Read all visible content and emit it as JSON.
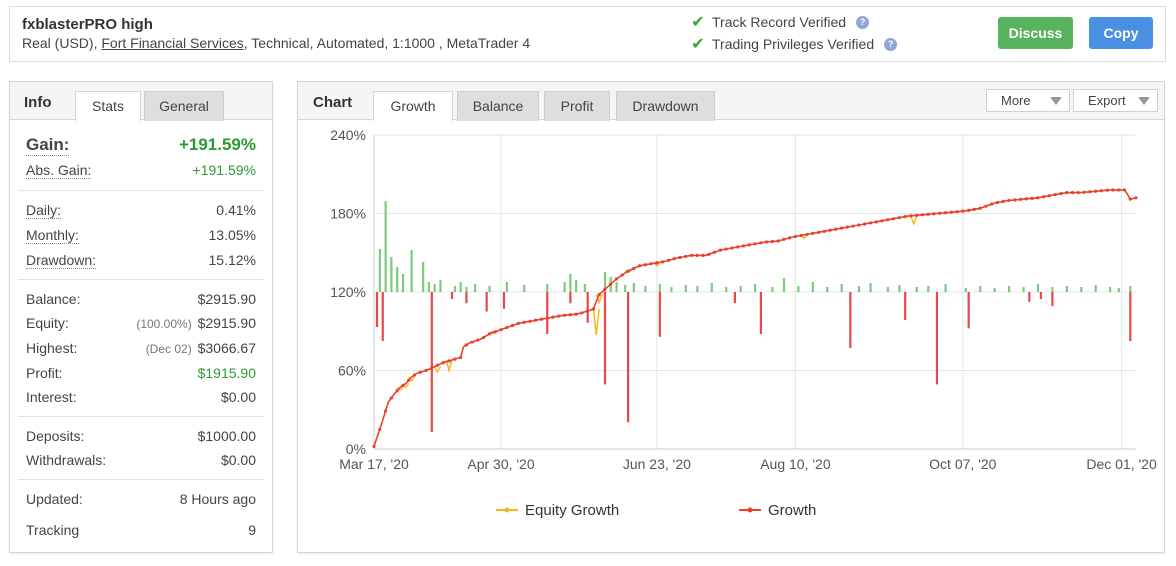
{
  "header": {
    "system_name": "fxblasterPRO high",
    "desc_prefix": "Real (USD), ",
    "broker": "Fort Financial Services",
    "desc_suffix": ", Technical, Automated, 1:1000 , MetaTrader 4",
    "verify_track": "Track Record Verified",
    "verify_trading": "Trading Privileges Verified",
    "discuss_label": "Discuss",
    "copy_label": "Copy"
  },
  "left": {
    "title": "Info",
    "tabs": [
      "Stats",
      "General"
    ],
    "gain_label": "Gain:",
    "gain_value": "+191.59%",
    "abs_gain_label": "Abs. Gain:",
    "abs_gain_value": "+191.59%",
    "daily_label": "Daily:",
    "daily_value": "0.41%",
    "monthly_label": "Monthly:",
    "monthly_value": "13.05%",
    "drawdown_label": "Drawdown:",
    "drawdown_value": "15.12%",
    "balance_label": "Balance:",
    "balance_value": "$2915.90",
    "equity_label": "Equity:",
    "equity_sub": "(100.00%)",
    "equity_value": "$2915.90",
    "highest_label": "Highest:",
    "highest_sub": "(Dec 02)",
    "highest_value": "$3066.67",
    "profit_label": "Profit:",
    "profit_value": "$1915.90",
    "interest_label": "Interest:",
    "interest_value": "$0.00",
    "deposits_label": "Deposits:",
    "deposits_value": "$1000.00",
    "withdrawals_label": "Withdrawals:",
    "withdrawals_value": "$0.00",
    "updated_label": "Updated:",
    "updated_value": "8 Hours ago",
    "tracking_label": "Tracking",
    "tracking_value": "9"
  },
  "right": {
    "title": "Chart",
    "tabs": [
      "Growth",
      "Balance",
      "Profit",
      "Drawdown"
    ],
    "active_tab": "Growth",
    "more_label": "More",
    "export_label": "Export"
  },
  "colors": {
    "growth": "#e8412c",
    "equity": "#f5b820",
    "bar_pos": "#7fc97f",
    "bar_neg": "#e84848",
    "green_text": "#2b9a35",
    "discuss": "#58b35e",
    "copy": "#4a90e2"
  },
  "chart_data": {
    "type": "line",
    "y_unit": "%",
    "y_ticks": [
      "240%",
      "180%",
      "120%",
      "60%",
      "0%"
    ],
    "ylim": [
      0,
      240
    ],
    "x_ticks": [
      "Mar 17, '20",
      "Apr 30, '20",
      "Jun 23, '20",
      "Aug 10, '20",
      "Oct 07, '20",
      "Dec 01, '20"
    ],
    "x_range_days": [
      0,
      264
    ],
    "x_tick_days": [
      0,
      44,
      98,
      146,
      204,
      259
    ],
    "legend": [
      "Equity Growth",
      "Growth"
    ],
    "legend_position": "bottom",
    "grid": true,
    "series": [
      {
        "name": "Growth",
        "x_days": [
          0,
          2,
          3,
          5,
          7,
          9,
          11,
          13,
          15,
          18,
          21,
          24,
          27,
          30,
          31,
          33,
          37,
          40,
          45,
          50,
          55,
          60,
          65,
          70,
          72,
          76,
          78,
          81,
          84,
          88,
          92,
          97,
          100,
          105,
          110,
          115,
          120,
          125,
          130,
          135,
          140,
          145,
          150,
          155,
          160,
          165,
          170,
          175,
          180,
          185,
          190,
          195,
          200,
          205,
          210,
          215,
          220,
          225,
          230,
          235,
          240,
          245,
          250,
          255,
          260,
          261,
          262,
          264
        ],
        "y": [
          2,
          15,
          22,
          36,
          42,
          47,
          50,
          55,
          58,
          60,
          63,
          66,
          68,
          70,
          78,
          81,
          84,
          88,
          92,
          96,
          98,
          100,
          102,
          103,
          104,
          107,
          118,
          124,
          130,
          136,
          140,
          142,
          143,
          146,
          148,
          148,
          152,
          154,
          156,
          158,
          159,
          162,
          164,
          166,
          168,
          170,
          172,
          174,
          176,
          178,
          179,
          180,
          181,
          182,
          184,
          188,
          190,
          191,
          192,
          194,
          196,
          196,
          197,
          198,
          198,
          195,
          191,
          192
        ]
      },
      {
        "name": "Equity Growth",
        "x_days": [
          9,
          11,
          13,
          22,
          26,
          41,
          77,
          78,
          88,
          98,
          149,
          187
        ],
        "y": [
          45,
          47,
          52,
          59,
          60,
          90,
          87,
          112,
          135,
          140,
          161,
          172
        ]
      }
    ],
    "daily_bars": {
      "positive_days": [
        2,
        4,
        6,
        8,
        10,
        13,
        17,
        19,
        21,
        23,
        28,
        30,
        32,
        35,
        40,
        46,
        52,
        60,
        66,
        68,
        70,
        73,
        80,
        82,
        84,
        87,
        90,
        94,
        99,
        103,
        108,
        112,
        117,
        122,
        127,
        132,
        138,
        142,
        147,
        152,
        157,
        162,
        168,
        172,
        178,
        182,
        188,
        192,
        198,
        205,
        210,
        215,
        220,
        225,
        230,
        235,
        240,
        245,
        250,
        255,
        258,
        262
      ],
      "positive_values": [
        43,
        91,
        35,
        25,
        18,
        42,
        30,
        10,
        8,
        12,
        6,
        10,
        5,
        8,
        6,
        10,
        7,
        8,
        10,
        18,
        12,
        8,
        20,
        15,
        10,
        7,
        9,
        6,
        8,
        5,
        7,
        6,
        9,
        5,
        6,
        8,
        5,
        14,
        6,
        10,
        5,
        8,
        6,
        9,
        5,
        7,
        5,
        6,
        8,
        4,
        6,
        4,
        6,
        5,
        8,
        5,
        6,
        5,
        7,
        5,
        4,
        6
      ],
      "negative_days": [
        1,
        3,
        20,
        27,
        32,
        39,
        45,
        60,
        68,
        74,
        80,
        88,
        99,
        125,
        134,
        165,
        184,
        195,
        206,
        227,
        231,
        235,
        262
      ],
      "negative_values": [
        -25,
        -35,
        -100,
        -5,
        -8,
        -14,
        -12,
        -30,
        -8,
        -22,
        -66,
        -93,
        -32,
        -8,
        -30,
        -40,
        -20,
        -66,
        -26,
        -7,
        -5,
        -10,
        -35
      ]
    }
  }
}
